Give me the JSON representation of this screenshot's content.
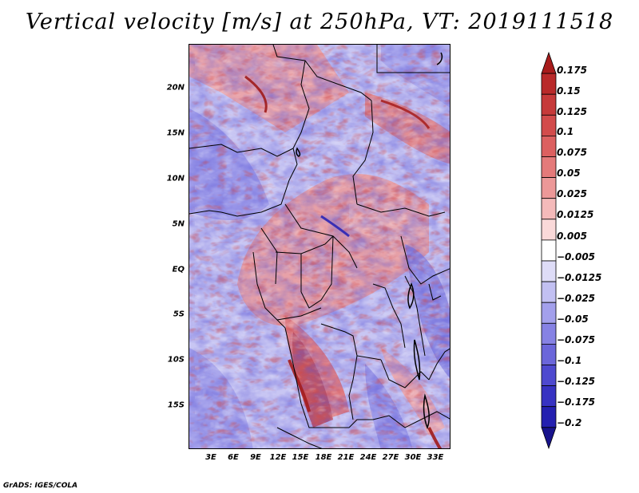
{
  "title": "Vertical velocity [m/s] at 250hPa, VT: 2019111518",
  "credit": "GrADS: IGES/COLA",
  "lat_ticks": [
    "20N",
    "15N",
    "10N",
    "5N",
    "EQ",
    "5S",
    "10S",
    "15S"
  ],
  "lon_ticks": [
    "3E",
    "6E",
    "9E",
    "12E",
    "15E",
    "18E",
    "21E",
    "24E",
    "27E",
    "30E",
    "33E"
  ],
  "colorbar": {
    "labels": [
      "0.175",
      "0.15",
      "0.125",
      "0.1",
      "0.075",
      "0.05",
      "0.025",
      "0.0125",
      "0.005",
      "−0.005",
      "−0.0125",
      "−0.025",
      "−0.05",
      "−0.075",
      "−0.1",
      "−0.125",
      "−0.175",
      "−0.2"
    ],
    "colors": [
      "#a81c1c",
      "#b92a2a",
      "#c63a3a",
      "#d24b4b",
      "#dc6060",
      "#e47a7a",
      "#ec9898",
      "#f4baba",
      "#fad9d9",
      "#ffffff",
      "#dedcf7",
      "#c2c0f2",
      "#a3a0ec",
      "#8682e4",
      "#6b66da",
      "#4e49cf",
      "#3732c2",
      "#2420b0",
      "#18138c"
    ]
  }
}
